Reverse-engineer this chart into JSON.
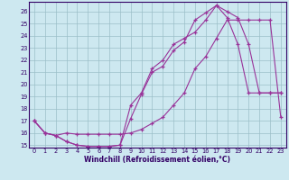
{
  "xlabel": "Windchill (Refroidissement éolien,°C)",
  "ylabel": "",
  "bg_color": "#cde8f0",
  "grid_color": "#9bbfc8",
  "line_color": "#993399",
  "xlim": [
    -0.5,
    23.5
  ],
  "ylim": [
    14.8,
    26.8
  ],
  "yticks": [
    15,
    16,
    17,
    18,
    19,
    20,
    21,
    22,
    23,
    24,
    25,
    26
  ],
  "xticks": [
    0,
    1,
    2,
    3,
    4,
    5,
    6,
    7,
    8,
    9,
    10,
    11,
    12,
    13,
    14,
    15,
    16,
    17,
    18,
    19,
    20,
    21,
    22,
    23
  ],
  "line1_x": [
    0,
    1,
    2,
    3,
    4,
    5,
    6,
    7,
    8,
    9,
    10,
    11,
    12,
    13,
    14,
    15,
    16,
    17,
    18,
    19,
    20,
    21,
    22,
    23
  ],
  "line1_y": [
    17.0,
    16.0,
    15.8,
    15.3,
    15.0,
    14.9,
    14.9,
    14.9,
    15.0,
    17.2,
    19.2,
    21.0,
    21.5,
    22.8,
    23.5,
    25.3,
    25.9,
    26.5,
    26.0,
    25.5,
    23.3,
    19.3,
    19.3,
    19.3
  ],
  "line2_x": [
    0,
    1,
    2,
    3,
    4,
    5,
    6,
    7,
    8,
    9,
    10,
    11,
    12,
    13,
    14,
    15,
    16,
    17,
    18,
    19,
    20,
    21,
    22,
    23
  ],
  "line2_y": [
    17.0,
    16.0,
    15.8,
    16.0,
    15.9,
    15.9,
    15.9,
    15.9,
    15.9,
    16.0,
    16.3,
    16.8,
    17.3,
    18.3,
    19.3,
    21.3,
    22.3,
    23.8,
    25.3,
    25.3,
    25.3,
    25.3,
    25.3,
    17.3
  ],
  "line3_x": [
    0,
    1,
    2,
    3,
    4,
    5,
    6,
    7,
    8,
    9,
    10,
    11,
    12,
    13,
    14,
    15,
    16,
    17,
    18,
    19,
    20,
    21,
    22,
    23
  ],
  "line3_y": [
    17.0,
    16.0,
    15.8,
    15.3,
    15.0,
    14.9,
    14.9,
    14.9,
    15.0,
    18.3,
    19.3,
    21.3,
    22.0,
    23.3,
    23.8,
    24.3,
    25.3,
    26.5,
    25.5,
    23.3,
    19.3,
    19.3,
    19.3,
    19.3
  ]
}
